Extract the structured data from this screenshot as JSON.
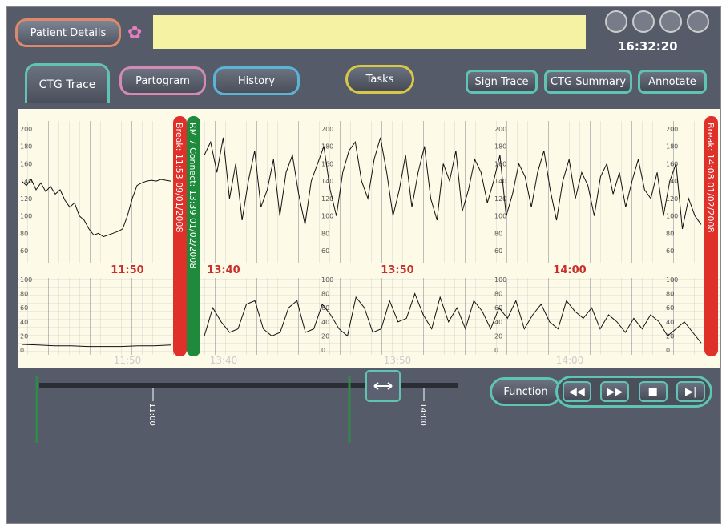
{
  "header": {
    "patient_details": "Patient Details",
    "clock": "16:32:20"
  },
  "tabs": [
    "CTG Trace",
    "Partogram",
    "History"
  ],
  "tasks": "Tasks",
  "actions": [
    "Sign Trace",
    "CTG Summary",
    "Annotate"
  ],
  "trace": {
    "fhr_scale": [
      60,
      80,
      100,
      120,
      140,
      160,
      180,
      200
    ],
    "toco_scale": [
      0,
      20,
      40,
      60,
      80,
      100
    ],
    "time_labels": [
      "11:50",
      "13:40",
      "13:50",
      "14:00"
    ],
    "markers": [
      "Break: 11:53 09/01/2008",
      "RM 7  Connect: 13:39 01/02/2008",
      "Break: 14:08 01/02/2008"
    ],
    "fhr_a": [
      140,
      135,
      142,
      130,
      138,
      128,
      134,
      125,
      130,
      118,
      110,
      115,
      100,
      95,
      85,
      78,
      80,
      76,
      78,
      80,
      82,
      85,
      100,
      120,
      135,
      138,
      140,
      141,
      140,
      142,
      141,
      140
    ],
    "fhr_b": [
      170,
      185,
      150,
      190,
      120,
      160,
      95,
      140,
      175,
      110,
      130,
      165,
      100,
      150,
      170,
      125,
      90,
      140,
      160,
      180,
      130,
      100,
      150,
      175,
      185,
      140,
      120,
      165,
      190,
      150,
      100,
      130,
      170,
      110,
      150,
      180,
      120,
      95,
      160,
      140,
      175,
      105,
      130,
      165,
      150,
      115,
      140,
      170,
      100,
      125,
      160,
      145,
      110,
      150,
      175,
      130,
      95,
      140,
      165,
      120,
      150,
      135,
      100,
      145,
      160,
      125,
      150,
      110,
      140,
      165,
      130,
      120,
      150,
      100,
      140,
      160,
      85,
      120,
      100,
      90
    ],
    "toco_a": [
      8,
      7,
      6,
      6,
      5,
      5,
      5,
      6,
      6,
      7
    ],
    "toco_b": [
      20,
      60,
      40,
      25,
      30,
      65,
      70,
      30,
      20,
      25,
      60,
      70,
      25,
      30,
      65,
      50,
      30,
      20,
      75,
      60,
      25,
      30,
      70,
      40,
      45,
      80,
      50,
      30,
      75,
      40,
      60,
      30,
      70,
      55,
      30,
      60,
      45,
      70,
      30,
      50,
      65,
      40,
      30,
      70,
      55,
      45,
      60,
      30,
      50,
      40,
      25,
      45,
      30,
      50,
      40,
      20,
      30,
      40,
      25,
      10
    ]
  },
  "timeline": {
    "ticks": [
      "11:00",
      "14:00"
    ]
  },
  "controls": {
    "function": "Function"
  }
}
